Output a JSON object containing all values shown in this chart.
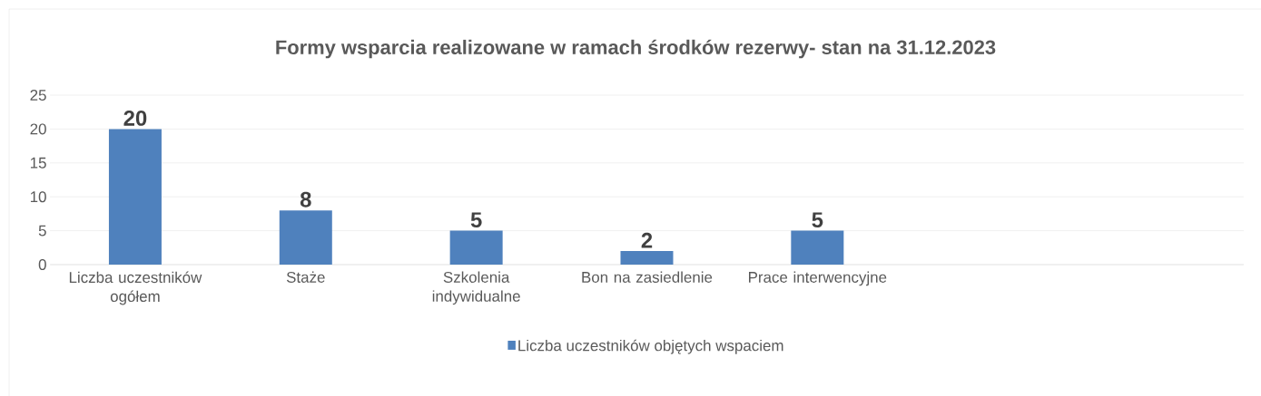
{
  "chart_data": {
    "type": "bar",
    "title": "Formy wsparcia realizowane w ramach środków rezerwy- stan na 31.12.2023",
    "categories": [
      "Liczba uczestników ogółem",
      "Staże",
      "Szkolenia indywidualne",
      "Bon na zasiedlenie",
      "Prace interwencyjne",
      null,
      null
    ],
    "series": [
      {
        "name": "Liczba uczestników objętych wspaciem",
        "color": "#4f81bd",
        "values": [
          20,
          8,
          5,
          2,
          5,
          null,
          null
        ]
      }
    ],
    "ylim": [
      0,
      25
    ],
    "yticks": [
      0,
      5,
      10,
      15,
      20,
      25
    ],
    "grid": "y",
    "legend": "bottom",
    "data_labels": true
  }
}
